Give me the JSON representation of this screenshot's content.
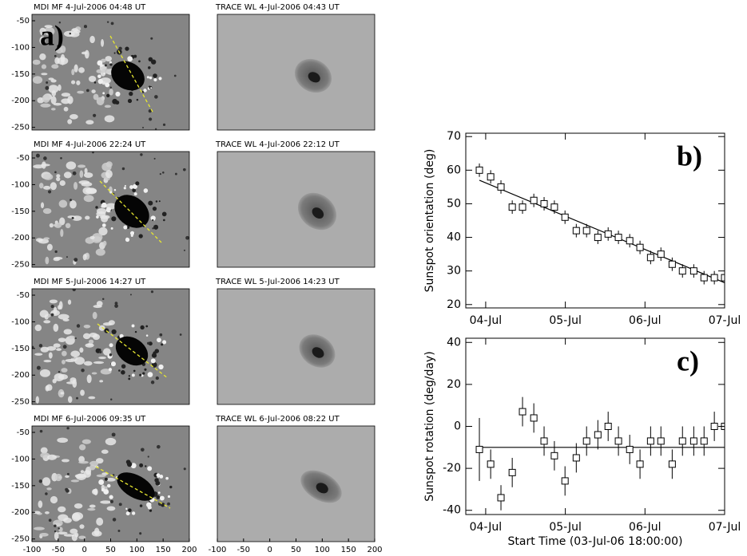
{
  "image_panels": {
    "label": "a)",
    "xlim": [
      -100,
      200
    ],
    "ylim": [
      -255,
      -38
    ],
    "xticks": [
      -100,
      -50,
      0,
      50,
      100,
      150,
      200
    ],
    "yticks": [
      -50,
      -100,
      -150,
      -200,
      -250
    ],
    "titles": [
      [
        "MDI MF 4-Jul-2006 04:48 UT",
        "TRACE WL 4-Jul-2006 04:43 UT"
      ],
      [
        "MDI MF 4-Jul-2006 22:24 UT",
        "TRACE WL 4-Jul-2006 22:12 UT"
      ],
      [
        "MDI MF 5-Jul-2006 14:27 UT",
        "TRACE WL 5-Jul-2006 14:23 UT"
      ],
      [
        "MDI MF 6-Jul-2006 09:35 UT",
        "TRACE WL 6-Jul-2006 08:22 UT"
      ]
    ]
  },
  "chart_data": [
    {
      "type": "scatter",
      "label": "b)",
      "ylabel": "Sunspot orientation (deg)",
      "x": [
        4.1,
        7.5,
        10.6,
        14.0,
        17.1,
        20.5,
        23.6,
        26.7,
        29.9,
        33.3,
        36.4,
        39.8,
        42.9,
        46.0,
        49.4,
        52.5,
        55.7,
        58.8,
        62.2,
        65.3,
        68.7,
        71.8,
        74.9,
        78.0
      ],
      "values": [
        60,
        58,
        55,
        49,
        49,
        51,
        50,
        49,
        46,
        42,
        42,
        40,
        41,
        40,
        39,
        37,
        34,
        35,
        32,
        30,
        30,
        28,
        28,
        28
      ],
      "errors": [
        2,
        2,
        2,
        2,
        2,
        2,
        2,
        2,
        2,
        2,
        2,
        2,
        2,
        2,
        2,
        2,
        2,
        2,
        2,
        2,
        2,
        2,
        2,
        2
      ],
      "fit": {
        "x": [
          4.1,
          78.0
        ],
        "values": [
          57,
          26.5
        ]
      },
      "xlim": [
        0,
        78
      ],
      "ylim": [
        19,
        71
      ],
      "xticks": [
        {
          "value": 6,
          "label": "04-Jul"
        },
        {
          "value": 30,
          "label": "05-Jul"
        },
        {
          "value": 54,
          "label": "06-Jul"
        },
        {
          "value": 78,
          "label": "07-Jul"
        }
      ],
      "yticks": [
        20,
        30,
        40,
        50,
        60,
        70
      ]
    },
    {
      "type": "scatter",
      "label": "c)",
      "ylabel": "Sunspot rotation (deg/day)",
      "xlabel": "Start Time (03-Jul-06 18:00:00)",
      "x": [
        4.1,
        7.5,
        10.6,
        14.0,
        17.1,
        20.5,
        23.6,
        26.7,
        29.9,
        33.3,
        36.4,
        39.8,
        42.9,
        46.0,
        49.4,
        52.5,
        55.7,
        58.8,
        62.2,
        65.3,
        68.7,
        71.8,
        74.9,
        78.0
      ],
      "values": [
        -11,
        -18,
        -34,
        -22,
        7,
        4,
        -7,
        -14,
        -26,
        -15,
        -7,
        -4,
        0,
        -7,
        -11,
        -18,
        -7,
        -7,
        -18,
        -7,
        -7,
        -7,
        0,
        0
      ],
      "errors": [
        15,
        7,
        6,
        7,
        7,
        7,
        7,
        7,
        7,
        7,
        7,
        7,
        7,
        7,
        7,
        7,
        7,
        7,
        7,
        7,
        7,
        7,
        7,
        7
      ],
      "fit": {
        "x": [
          4.1,
          78.0
        ],
        "values": [
          -10,
          -10
        ]
      },
      "xlim": [
        0,
        78
      ],
      "ylim": [
        -42,
        42
      ],
      "xticks": [
        {
          "value": 6,
          "label": "04-Jul"
        },
        {
          "value": 30,
          "label": "05-Jul"
        },
        {
          "value": 54,
          "label": "06-Jul"
        },
        {
          "value": 78,
          "label": "07-Jul"
        }
      ],
      "yticks": [
        -40,
        -20,
        0,
        20,
        40
      ]
    }
  ]
}
